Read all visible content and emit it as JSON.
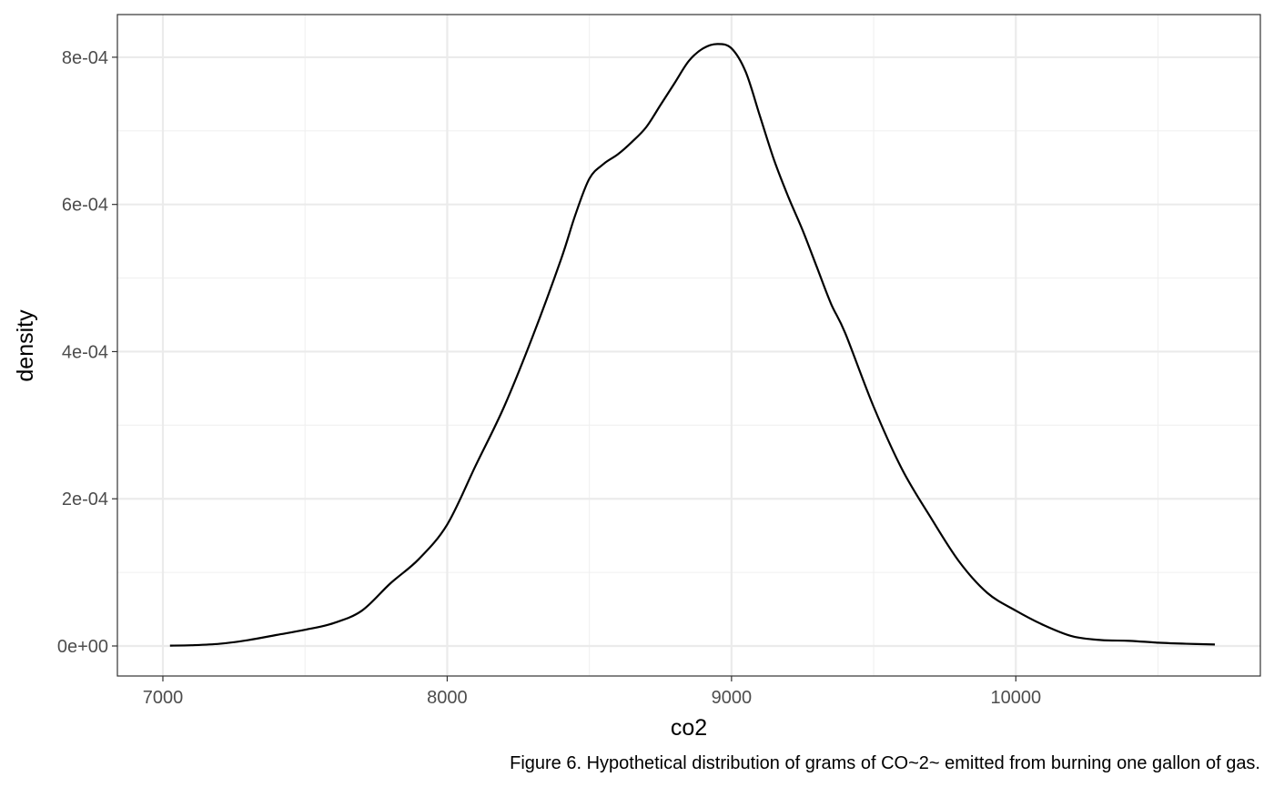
{
  "chart_data": {
    "type": "line",
    "xlabel": "co2",
    "ylabel": "density",
    "caption": "Figure 6. Hypothetical distribution of grams of CO~2~ emitted from burning one gallon of gas.",
    "xlim": [
      6840,
      10860
    ],
    "ylim": [
      -4.08e-05,
      0.000858
    ],
    "x_ticks": [
      7000,
      8000,
      9000,
      10000
    ],
    "x_tick_labels": [
      "7000",
      "8000",
      "9000",
      "10000"
    ],
    "y_ticks": [
      0,
      0.0002,
      0.0004,
      0.0006,
      0.0008
    ],
    "y_tick_labels": [
      "0e+00",
      "2e-04",
      "4e-04",
      "6e-04",
      "8e-04"
    ],
    "x_minor_ticks": [
      7500,
      8500,
      9500,
      10500
    ],
    "y_minor_ticks": [
      0.0001,
      0.0003,
      0.0005,
      0.0007
    ],
    "grid": true,
    "series": [
      {
        "color": "#000000",
        "x": [
          7025,
          7100,
          7200,
          7300,
          7400,
          7500,
          7600,
          7700,
          7800,
          7900,
          8000,
          8100,
          8200,
          8300,
          8400,
          8450,
          8500,
          8550,
          8600,
          8650,
          8700,
          8750,
          8800,
          8850,
          8900,
          8950,
          9000,
          9050,
          9100,
          9150,
          9200,
          9250,
          9300,
          9350,
          9400,
          9500,
          9600,
          9700,
          9800,
          9900,
          10000,
          10100,
          10200,
          10300,
          10400,
          10500,
          10600,
          10700
        ],
        "y": [
          5e-07,
          1e-06,
          3e-06,
          8e-06,
          1.5e-05,
          2.2e-05,
          3.1e-05,
          4.8e-05,
          8.5e-05,
          0.000118,
          0.000165,
          0.000245,
          0.000325,
          0.00042,
          0.000525,
          0.000585,
          0.000635,
          0.000655,
          0.000668,
          0.000685,
          0.000705,
          0.000735,
          0.000765,
          0.000795,
          0.000812,
          0.000818,
          0.000812,
          0.00078,
          0.00072,
          0.00066,
          0.00061,
          0.000565,
          0.000515,
          0.000465,
          0.000425,
          0.000325,
          0.00024,
          0.000175,
          0.000115,
          7.2e-05,
          4.8e-05,
          2.8e-05,
          1.3e-05,
          8e-06,
          7e-06,
          4.5e-06,
          3e-06,
          2e-06
        ]
      }
    ]
  }
}
